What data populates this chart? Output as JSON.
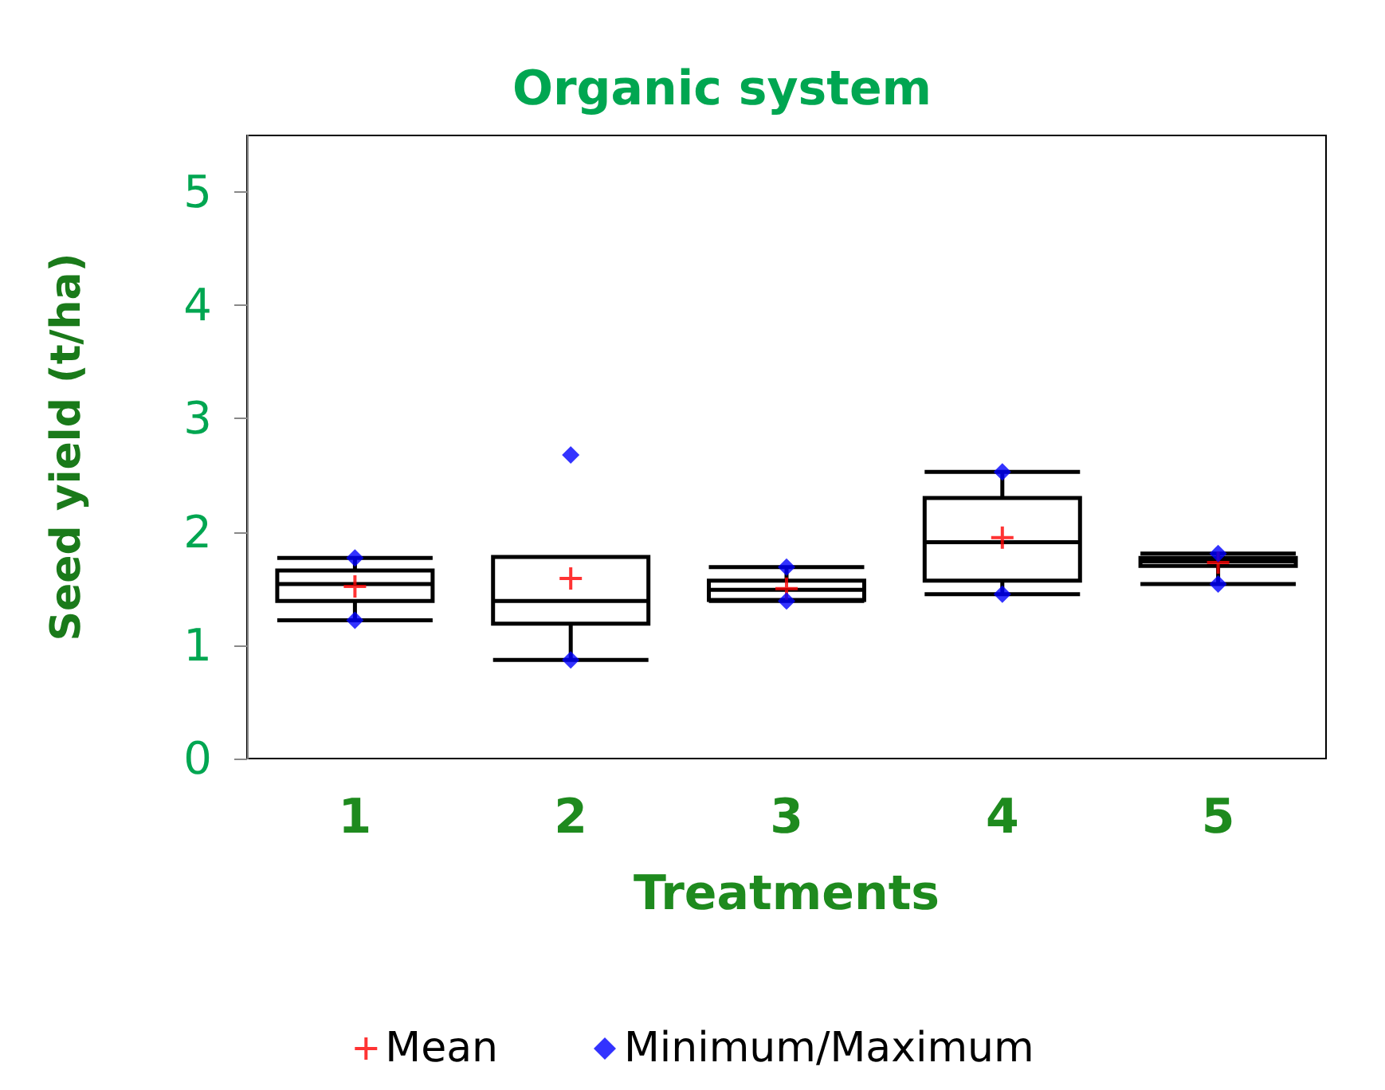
{
  "chart_data": {
    "type": "box",
    "title": "Organic system",
    "xlabel": "Treatments",
    "ylabel": "Seed yield (t/ha)",
    "categories": [
      "1",
      "2",
      "3",
      "4",
      "5"
    ],
    "ylim": [
      0,
      5.5
    ],
    "yticks": [
      0,
      1,
      2,
      3,
      4,
      5
    ],
    "grid": false,
    "legend": "bottom",
    "boxes": [
      {
        "low": 1.22,
        "q1": 1.39,
        "median": 1.54,
        "q3": 1.66,
        "high": 1.77
      },
      {
        "low": 0.87,
        "q1": 1.19,
        "median": 1.39,
        "q3": 1.78,
        "high": 1.78
      },
      {
        "low": 1.39,
        "q1": 1.4,
        "median": 1.49,
        "q3": 1.57,
        "high": 1.69
      },
      {
        "low": 1.45,
        "q1": 1.57,
        "median": 1.91,
        "q3": 2.3,
        "high": 2.53
      },
      {
        "low": 1.54,
        "q1": 1.7,
        "median": 1.74,
        "q3": 1.77,
        "high": 1.81
      }
    ],
    "series": [
      {
        "type": "scatter",
        "name": "Mean",
        "color": "#ff0000",
        "marker": "cross",
        "x": [
          "1",
          "2",
          "3",
          "4",
          "5"
        ],
        "values": [
          1.52,
          1.59,
          1.5,
          1.95,
          1.73
        ]
      },
      {
        "type": "scatter",
        "name": "Minimum/Maximum",
        "color": "#0000ff",
        "marker": "diamond",
        "x": [
          "1",
          "1",
          "2",
          "2",
          "3",
          "3",
          "4",
          "4",
          "5",
          "5"
        ],
        "values": [
          1.22,
          1.77,
          0.87,
          2.68,
          1.39,
          1.69,
          1.45,
          2.53,
          1.54,
          1.81
        ]
      }
    ]
  }
}
